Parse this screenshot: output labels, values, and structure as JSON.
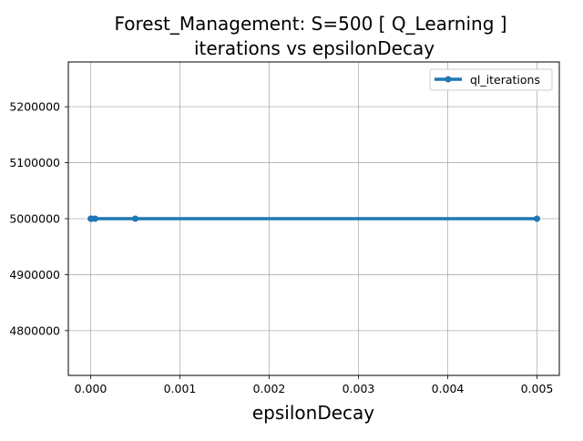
{
  "chart_data": {
    "type": "line",
    "title": "Forest_Management: S=500 [ Q_Learning ]",
    "subtitle": "iterations vs epsilonDecay",
    "xlabel": "epsilonDecay",
    "ylabel": "",
    "xlim": [
      -0.00025,
      0.00525
    ],
    "ylim": [
      4720000,
      5280000
    ],
    "xticks": [
      0.0,
      0.001,
      0.002,
      0.003,
      0.004,
      0.005
    ],
    "xtick_labels": [
      "0.000",
      "0.001",
      "0.002",
      "0.003",
      "0.004",
      "0.005"
    ],
    "yticks": [
      4800000,
      4900000,
      5000000,
      5100000,
      5200000
    ],
    "ytick_labels": [
      "4800000",
      "4900000",
      "5000000",
      "5100000",
      "5200000"
    ],
    "grid": true,
    "legend_position": "top-right",
    "series": [
      {
        "name": "ql_iterations",
        "color": "#1f77b4",
        "x": [
          1e-06,
          1e-05,
          5e-05,
          0.0005,
          0.005
        ],
        "y": [
          5000000,
          5000000,
          5000000,
          5000000,
          5000000
        ]
      }
    ]
  }
}
